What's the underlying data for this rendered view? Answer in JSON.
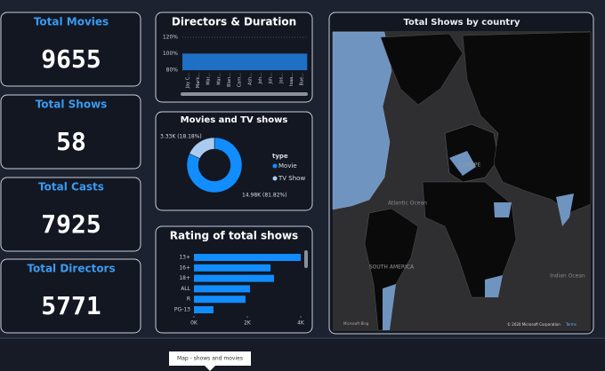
{
  "kpis": [
    {
      "label": "Total Movies",
      "value": 9655
    },
    {
      "label": "Total Shows",
      "value": 58
    },
    {
      "label": "Total Casts",
      "value": 7925
    },
    {
      "label": "Total Directors",
      "value": 5771
    }
  ],
  "chart_data": [
    {
      "type": "bar",
      "title": "Directors & Duration",
      "categories": [
        "Jay C...",
        "Mark...",
        "Mar...",
        "Mar...",
        "Blan...",
        "Cam...",
        "Ash...",
        "Joh...",
        "Joh...",
        "Jos...",
        "Isaa...",
        "Bue..."
      ],
      "values": [
        100,
        100,
        100,
        100,
        100,
        100,
        100,
        100,
        100,
        100,
        100,
        100
      ],
      "color": "#1f6fc5",
      "ylim": [
        80,
        120
      ],
      "yticks": [
        {
          "value": 80,
          "label": "80%"
        },
        {
          "value": 100,
          "label": "100%"
        },
        {
          "value": 120,
          "label": "120%"
        }
      ],
      "grid": true
    },
    {
      "type": "donut",
      "title": "Movies and TV shows",
      "legend_title": "type",
      "series": [
        {
          "name": "Movie",
          "color": "#118dff",
          "values": [
            14980
          ],
          "value_labels": [
            "14.98K (81.82%)"
          ]
        },
        {
          "name": "TV Show",
          "color": "#a9cbef",
          "values": [
            3330
          ],
          "value_labels": [
            "3.33K (18.18%)"
          ]
        }
      ]
    },
    {
      "type": "hbar",
      "title": "Rating of total shows",
      "categories": [
        "13+",
        "16+",
        "18+",
        "ALL",
        "R",
        "PG-13"
      ],
      "values": [
        4000,
        2870,
        3000,
        2100,
        1930,
        730
      ],
      "color": "#118dff",
      "xlim": [
        0,
        4000
      ],
      "xticks": [
        {
          "value": 0,
          "label": "0K"
        },
        {
          "value": 2000,
          "label": "2K"
        },
        {
          "value": 4000,
          "label": "4K"
        }
      ]
    },
    {
      "type": "map",
      "title": "Total Shows by country",
      "annotations": [
        "Atlantic Ocean",
        "Indian Ocean",
        "EUROPE",
        "SOUTH AMERICA",
        "Microsoft Bing",
        "© 2020 Microsoft Corporation",
        "Terms"
      ]
    }
  ],
  "tooltip": "Map - shows and movies"
}
